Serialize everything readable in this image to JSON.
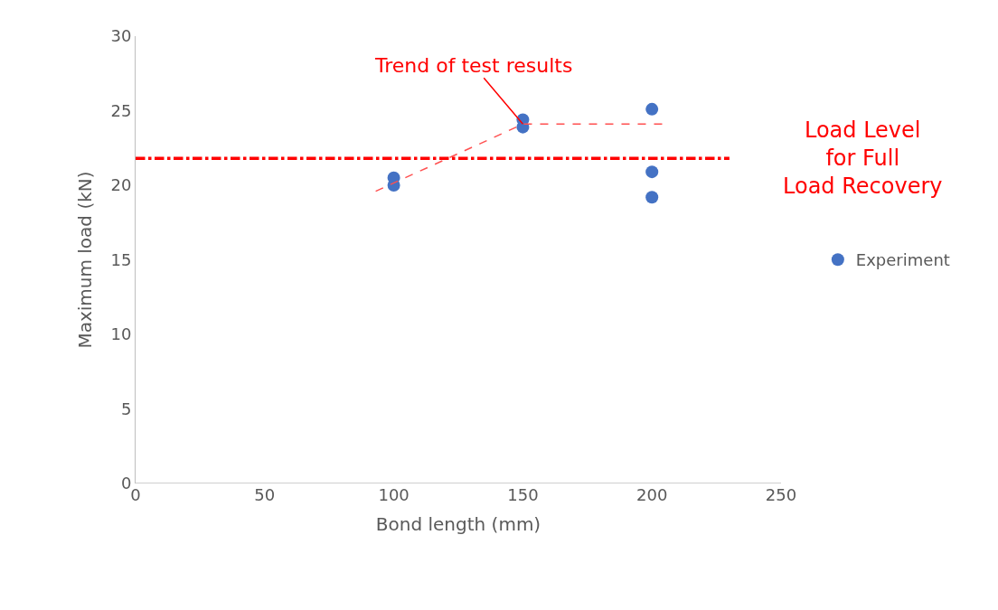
{
  "chart_data": {
    "type": "scatter",
    "xlabel": "Bond length (mm)",
    "ylabel": "Maximum load (kN)",
    "series": [
      {
        "name": "Experiment",
        "color": "#4472c4",
        "x": [
          100,
          100,
          150,
          150,
          200,
          200,
          200
        ],
        "values": [
          20.0,
          20.5,
          23.9,
          24.4,
          25.1,
          20.9,
          19.2
        ],
        "marker": "circle"
      },
      {
        "type": "line",
        "color": "#ff5050",
        "line_style": "dashed",
        "marker": "none",
        "x": [
          93,
          150,
          205
        ],
        "values": [
          19.6,
          24.1,
          24.1
        ]
      }
    ],
    "xlim": [
      0,
      250
    ],
    "xticks": [
      0,
      50,
      100,
      150,
      200,
      250
    ],
    "ylim": [
      0,
      30
    ],
    "yticks": [
      0,
      5,
      10,
      15,
      20,
      25,
      30
    ],
    "ref_lines": [
      {
        "axis": "y",
        "value": 21.8,
        "label": "Load Level\nfor Full\nLoad Recovery",
        "color": "#ff0000",
        "line_style": "dashdot"
      }
    ],
    "annotations": [
      {
        "text": "Trend of test results",
        "x": 150,
        "y": 24.1
      }
    ],
    "legend": "right"
  }
}
